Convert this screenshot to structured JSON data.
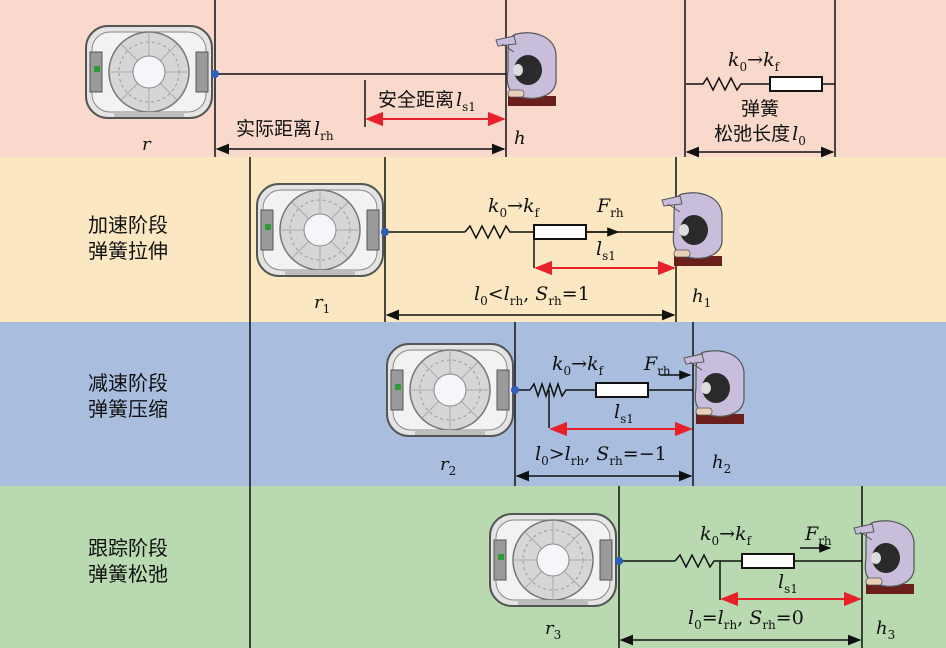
{
  "colors": {
    "band_top": "#f9d9cc",
    "band_accel": "#fbe8c2",
    "band_decel": "#a9bedf",
    "band_track": "#b9dab0",
    "red_arrow": "#e8202a",
    "joint": "#2d5fb8",
    "robot_body": "#d9d9d9",
    "human_body": "#c8bedc",
    "human_head": "#2a2a2a"
  },
  "top": {
    "robot_label": "r",
    "human_label": "h",
    "safe_distance_text": "安全距离",
    "safe_distance_var": "l",
    "safe_distance_sub": "s1",
    "actual_distance_text": "实际距离",
    "actual_distance_var": "l",
    "actual_distance_sub": "rh",
    "legend_k0": "k",
    "legend_k0_sub": "0",
    "legend_arrow": "→",
    "legend_kf": "k",
    "legend_kf_sub": "f",
    "legend_spring": "弹簧",
    "legend_relaxed": "松弛长度",
    "legend_l0": "l",
    "legend_l0_sub": "0"
  },
  "stages": [
    {
      "id": "accel",
      "title_line1": "加速阶段",
      "title_line2": "弹簧拉伸",
      "robot_label": "r",
      "robot_sub": "1",
      "human_label": "h",
      "human_sub": "1",
      "k0": "k",
      "k0_sub": "0",
      "arrow": "→",
      "kf": "k",
      "kf_sub": "f",
      "force": "F",
      "force_sub": "rh",
      "ls_var": "l",
      "ls_sub": "s1",
      "cond_l0": "l",
      "cond_l0_sub": "0",
      "cond_op": "<",
      "cond_lrh": "l",
      "cond_lrh_sub": "rh",
      "cond_sep": ", ",
      "cond_s": "S",
      "cond_s_sub": "rh",
      "cond_eq": "=1"
    },
    {
      "id": "decel",
      "title_line1": "减速阶段",
      "title_line2": "弹簧压缩",
      "robot_label": "r",
      "robot_sub": "2",
      "human_label": "h",
      "human_sub": "2",
      "k0": "k",
      "k0_sub": "0",
      "arrow": "→",
      "kf": "k",
      "kf_sub": "f",
      "force": "F",
      "force_sub": "rh",
      "ls_var": "l",
      "ls_sub": "s1",
      "cond_l0": "l",
      "cond_l0_sub": "0",
      "cond_op": ">",
      "cond_lrh": "l",
      "cond_lrh_sub": "rh",
      "cond_sep": ", ",
      "cond_s": "S",
      "cond_s_sub": "rh",
      "cond_eq": "=−1"
    },
    {
      "id": "track",
      "title_line1": "跟踪阶段",
      "title_line2": "弹簧松弛",
      "robot_label": "r",
      "robot_sub": "3",
      "human_label": "h",
      "human_sub": "3",
      "k0": "k",
      "k0_sub": "0",
      "arrow": "→",
      "kf": "k",
      "kf_sub": "f",
      "force": "F",
      "force_sub": "rh",
      "ls_var": "l",
      "ls_sub": "s1",
      "cond_l0": "l",
      "cond_l0_sub": "0",
      "cond_op": "=",
      "cond_lrh": "l",
      "cond_lrh_sub": "rh",
      "cond_sep": ", ",
      "cond_s": "S",
      "cond_s_sub": "rh",
      "cond_eq": "=0"
    }
  ]
}
